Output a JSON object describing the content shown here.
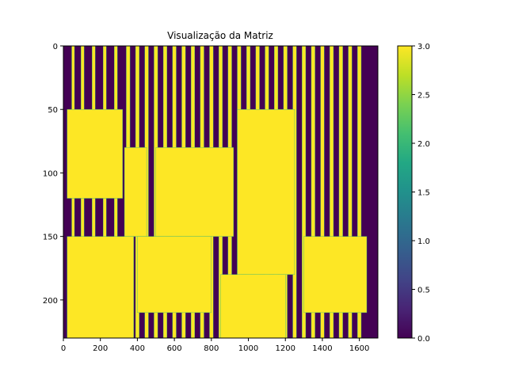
{
  "chart_data": {
    "type": "heatmap",
    "title": "Visualização da Matriz",
    "xlabel": "",
    "ylabel": "",
    "xlim": [
      0,
      1700
    ],
    "ylim": [
      230,
      0
    ],
    "x_ticks": [
      0,
      200,
      400,
      600,
      800,
      1000,
      1200,
      1400,
      1600
    ],
    "y_ticks": [
      0,
      50,
      100,
      150,
      200
    ],
    "colorbar": {
      "range": [
        0.0,
        3.0
      ],
      "ticks": [
        "0.0",
        "0.5",
        "1.0",
        "1.5",
        "2.0",
        "2.5",
        "3.0"
      ],
      "colormap": "viridis"
    },
    "colors": {
      "low": "#440154",
      "high": "#fde725",
      "edge": "#35b779"
    },
    "value_levels": {
      "background": 0,
      "filled": 3
    },
    "filled_regions": [
      [
        45,
        0,
        60,
        232
      ],
      [
        95,
        0,
        112,
        232
      ],
      [
        155,
        0,
        172,
        232
      ],
      [
        215,
        0,
        232,
        232
      ],
      [
        275,
        0,
        292,
        232
      ],
      [
        340,
        0,
        360,
        232
      ],
      [
        390,
        0,
        410,
        232
      ],
      [
        440,
        0,
        460,
        232
      ],
      [
        490,
        0,
        510,
        232
      ],
      [
        540,
        0,
        560,
        232
      ],
      [
        590,
        0,
        610,
        232
      ],
      [
        640,
        0,
        660,
        232
      ],
      [
        690,
        0,
        710,
        232
      ],
      [
        740,
        0,
        760,
        232
      ],
      [
        790,
        0,
        810,
        232
      ],
      [
        840,
        0,
        860,
        232
      ],
      [
        890,
        0,
        910,
        232
      ],
      [
        940,
        0,
        960,
        232
      ],
      [
        990,
        0,
        1010,
        232
      ],
      [
        1040,
        0,
        1060,
        232
      ],
      [
        1090,
        0,
        1110,
        232
      ],
      [
        1140,
        0,
        1160,
        232
      ],
      [
        1190,
        0,
        1210,
        232
      ],
      [
        1240,
        0,
        1260,
        232
      ],
      [
        1290,
        0,
        1310,
        232
      ],
      [
        1340,
        0,
        1360,
        232
      ],
      [
        1390,
        0,
        1410,
        232
      ],
      [
        1440,
        0,
        1460,
        232
      ],
      [
        1490,
        0,
        1510,
        232
      ],
      [
        1540,
        0,
        1560,
        232
      ],
      [
        1590,
        0,
        1610,
        232
      ],
      [
        20,
        50,
        320,
        120
      ],
      [
        330,
        80,
        450,
        150
      ],
      [
        500,
        80,
        920,
        150
      ],
      [
        940,
        50,
        1250,
        180
      ],
      [
        20,
        150,
        380,
        230
      ],
      [
        400,
        150,
        800,
        210
      ],
      [
        850,
        180,
        1200,
        230
      ],
      [
        1300,
        150,
        1640,
        210
      ]
    ]
  }
}
